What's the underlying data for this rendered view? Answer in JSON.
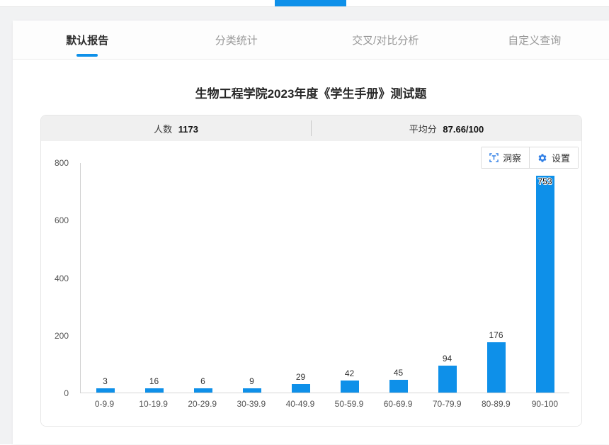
{
  "accent_color": "#0e90e9",
  "icon_color": "#2e7ee5",
  "tabs": [
    {
      "label": "默认报告",
      "active": true
    },
    {
      "label": "分类统计",
      "active": false
    },
    {
      "label": "交叉/对比分析",
      "active": false
    },
    {
      "label": "自定义查询",
      "active": false
    }
  ],
  "report": {
    "title": "生物工程学院2023年度《学生手册》测试题",
    "stats": [
      {
        "label": "人数",
        "value": "1173"
      },
      {
        "label": "平均分",
        "value": "87.66/100"
      }
    ]
  },
  "toolbar": {
    "insight_label": "洞察",
    "settings_label": "设置",
    "icons": {
      "insight": "text-insight-icon",
      "settings": "gear-icon"
    }
  },
  "chart_data": {
    "type": "bar",
    "title": "",
    "xlabel": "",
    "ylabel": "",
    "categories": [
      "0-9.9",
      "10-19.9",
      "20-29.9",
      "30-39.9",
      "40-49.9",
      "50-59.9",
      "60-69.9",
      "70-79.9",
      "80-89.9",
      "90-100"
    ],
    "values": [
      3,
      16,
      6,
      9,
      29,
      42,
      45,
      94,
      176,
      753
    ],
    "ylim": [
      0,
      800
    ],
    "yticks": [
      0,
      200,
      400,
      600,
      800
    ],
    "bar_color": "#0e90e9",
    "grid": false,
    "legend": "none",
    "value_labels": true
  }
}
